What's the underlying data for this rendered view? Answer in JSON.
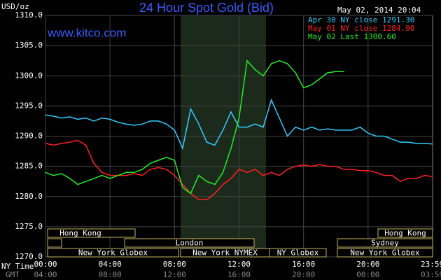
{
  "chart_data": {
    "type": "line",
    "title": "24 Hour Spot Gold (Bid)",
    "source": "www.kitco.com",
    "y_label": "USD/oz",
    "timestamp": "May 02, 2014 20:04",
    "x_label": "NY Time",
    "x2_label": "GMT",
    "x": [
      0,
      0.5,
      1,
      1.5,
      2,
      2.5,
      3,
      3.5,
      4,
      4.5,
      5,
      5.5,
      6,
      6.5,
      7,
      7.5,
      8,
      8.5,
      9,
      9.5,
      10,
      10.5,
      11,
      11.5,
      12,
      12.5,
      13,
      13.5,
      14,
      14.5,
      15,
      15.5,
      16,
      16.5,
      17,
      17.5,
      18,
      18.5,
      19,
      19.5,
      20,
      20.5,
      21,
      21.5,
      22,
      22.5,
      23,
      23.5,
      24
    ],
    "xlim": [
      0,
      24
    ],
    "xticks": [
      {
        "value": 0,
        "label": "00:00"
      },
      {
        "value": 4,
        "label": "04:00"
      },
      {
        "value": 8,
        "label": "08:00"
      },
      {
        "value": 12,
        "label": "12:00"
      },
      {
        "value": 16,
        "label": "16:00"
      },
      {
        "value": 20,
        "label": "20:00"
      },
      {
        "value": 23.98,
        "label": "23:59"
      }
    ],
    "x2tick_labels": [
      "04:00",
      "08:00",
      "12:00",
      "16:00",
      "20:00",
      "00:00",
      "03:59"
    ],
    "ylim": [
      1270,
      1310
    ],
    "yticks": [
      {
        "value": 1270,
        "label": "1270.0"
      },
      {
        "value": 1275,
        "label": "1275.0"
      },
      {
        "value": 1280,
        "label": "1280.0"
      },
      {
        "value": 1285,
        "label": "1285.0"
      },
      {
        "value": 1290,
        "label": "1290.0"
      },
      {
        "value": 1295,
        "label": "1295.0"
      },
      {
        "value": 1300,
        "label": "1300.0"
      },
      {
        "value": 1305,
        "label": "1305.0"
      },
      {
        "value": 1310,
        "label": "1310.0"
      }
    ],
    "grid": true,
    "series": [
      {
        "name": "Apr 30 NY close 1291.30",
        "color": "#33ccff",
        "values": [
          1293.5,
          1293.3,
          1293,
          1293.2,
          1292.8,
          1293,
          1292.5,
          1293,
          1292.8,
          1292.3,
          1292,
          1291.8,
          1292,
          1292.5,
          1292.5,
          1292,
          1291,
          1288,
          1294.5,
          1292,
          1289,
          1288.5,
          1291,
          1294,
          1291.5,
          1291.5,
          1292,
          1291.5,
          1296,
          1293,
          1290,
          1291.5,
          1291,
          1291.5,
          1291,
          1291.2,
          1291,
          1291,
          1291,
          1291.5,
          1290.5,
          1290,
          1290,
          1289.5,
          1289,
          1289,
          1288.8,
          1288.8,
          1288.7
        ]
      },
      {
        "name": "May 01 NY close 1284.90",
        "color": "#ff2020",
        "values": [
          1288.8,
          1288.5,
          1288.8,
          1289,
          1289.3,
          1288.5,
          1285.5,
          1284,
          1283.5,
          1283.5,
          1283.5,
          1283.8,
          1283.5,
          1284.5,
          1284.8,
          1284.5,
          1283.5,
          1282,
          1280.5,
          1279.5,
          1279.5,
          1280.5,
          1282,
          1283,
          1284.5,
          1284,
          1284.5,
          1283.5,
          1284,
          1283.5,
          1284.5,
          1285,
          1285.2,
          1285,
          1285.3,
          1285,
          1285,
          1284.5,
          1284.5,
          1284.3,
          1284.3,
          1284,
          1283.5,
          1283.5,
          1282.5,
          1283,
          1283,
          1283.5,
          1283.3
        ]
      },
      {
        "name": "May 02 Last 1300.60",
        "color": "#22ee22",
        "values": [
          1284,
          1283.5,
          1283.8,
          1283,
          1282,
          1282.5,
          1283,
          1283.5,
          1283,
          1283.5,
          1284,
          1284,
          1284.5,
          1285.5,
          1286,
          1286.5,
          1286,
          1281.5,
          1280.5,
          1283.5,
          1282.5,
          1282,
          1284,
          1288,
          1293,
          1302.5,
          1301,
          1300,
          1302,
          1302.5,
          1302,
          1300.5,
          1298,
          1298.5,
          1299.5,
          1300.5,
          1300.7,
          1300.7,
          null,
          null,
          null,
          null,
          null,
          null,
          null,
          null,
          null,
          null,
          null
        ]
      }
    ],
    "sessions": {
      "row1": [
        "Hong Kong",
        "Hong Kong"
      ],
      "row2": [
        "London",
        "Sydney"
      ],
      "row3": [
        "New York Globex",
        "New York NYMEX",
        "NY Globex",
        "New York Globex"
      ]
    }
  }
}
